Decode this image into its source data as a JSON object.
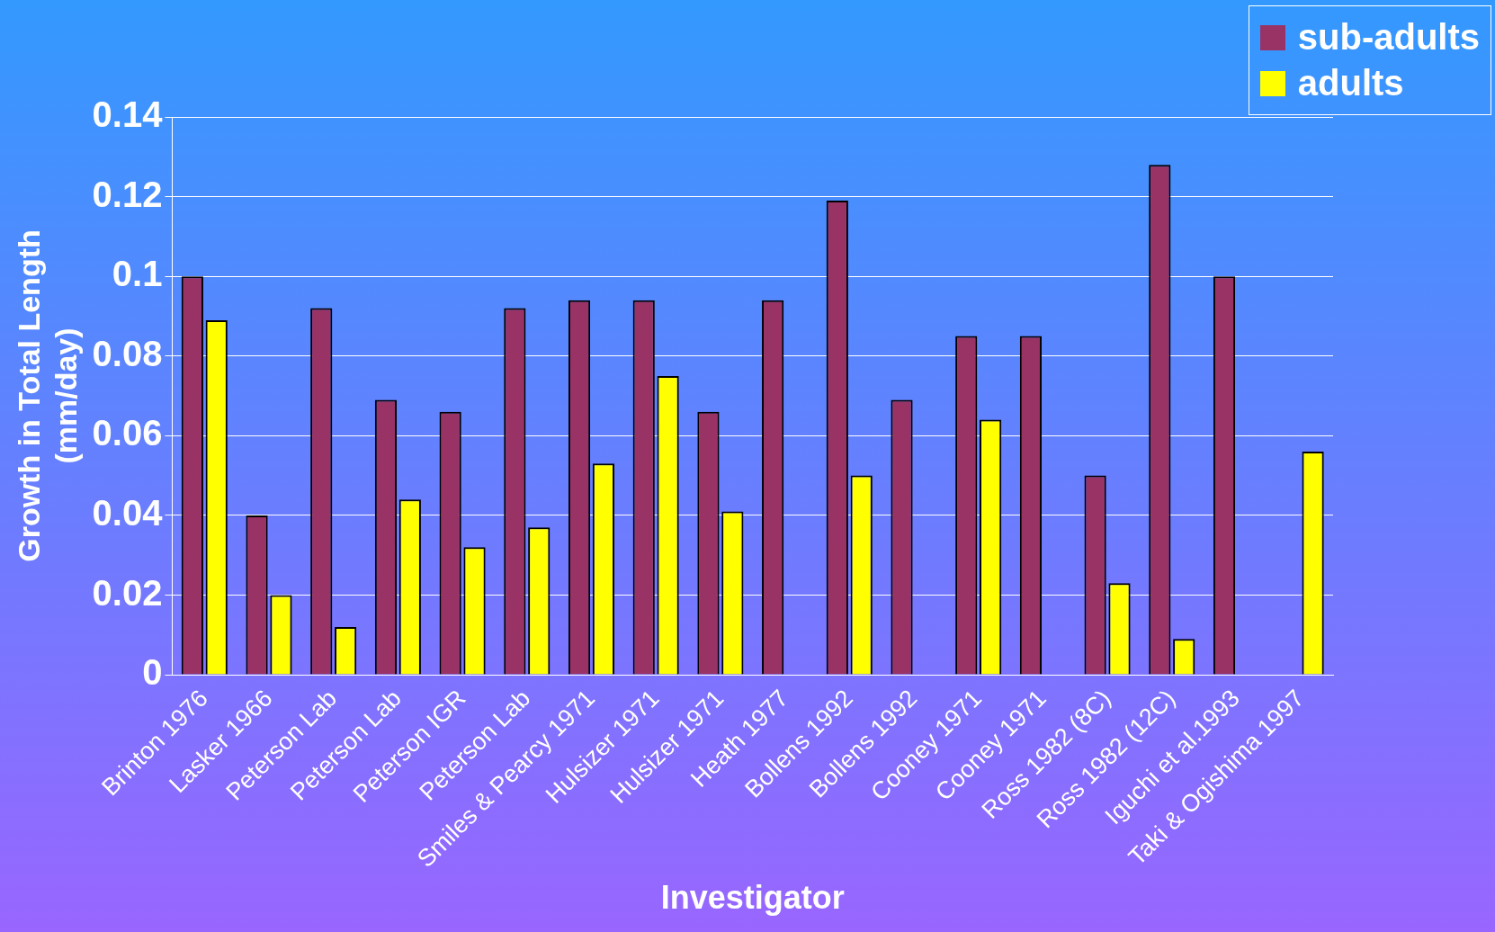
{
  "chart_data": {
    "type": "bar",
    "xlabel": "Investigator",
    "ylabel": "Growth in Total Length\n(mm/day)",
    "categories": [
      "Brinton 1976",
      "Lasker 1966",
      "Peterson Lab",
      "Peterson Lab",
      "Peterson IGR",
      "Peterson Lab",
      "Smiles & Pearcy 1971",
      "Hulsizer 1971",
      "Hulsizer 1971",
      "Heath 1977",
      "Bollens 1992",
      "Bollens 1992",
      "Cooney 1971",
      "Cooney 1971",
      "Ross 1982 (8C)",
      "Ross 1982 (12C)",
      "Iguchi et al.1993",
      "Taki & Ogishima 1997"
    ],
    "series": [
      {
        "name": "sub-adults",
        "color": "#993366",
        "values": [
          0.1,
          0.04,
          0.092,
          0.069,
          0.066,
          0.092,
          0.094,
          0.094,
          0.066,
          0.094,
          0.119,
          0.069,
          0.085,
          0.085,
          0.05,
          0.128,
          0.1,
          null
        ]
      },
      {
        "name": "adults",
        "color": "#ffff00",
        "values": [
          0.089,
          0.02,
          0.012,
          0.044,
          0.032,
          0.037,
          0.053,
          0.075,
          0.041,
          0,
          0.05,
          0,
          0.064,
          0,
          0.023,
          0.009,
          0,
          0.056
        ]
      }
    ],
    "ylim": [
      0,
      0.14
    ],
    "yticks": [
      0,
      0.02,
      0.04,
      0.06,
      0.08,
      0.1,
      0.12,
      0.14
    ],
    "grid": "y",
    "legend": "top right"
  }
}
